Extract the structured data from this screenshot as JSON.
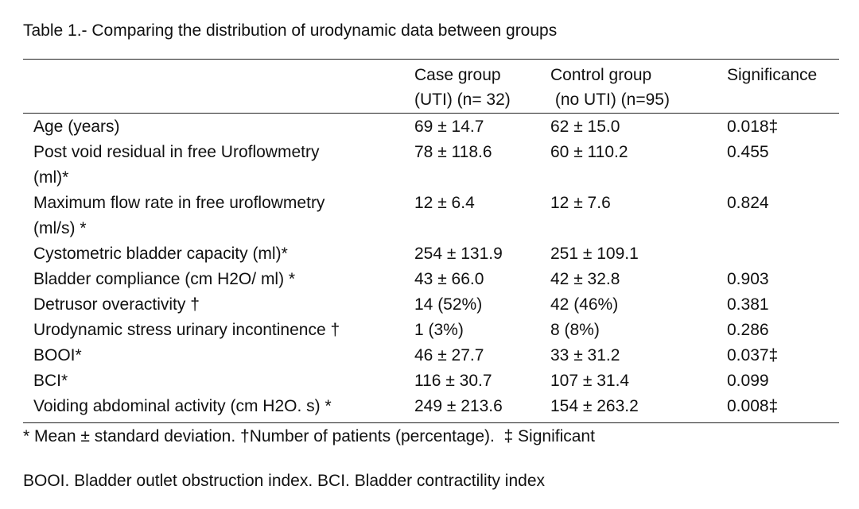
{
  "caption": "Table 1.- Comparing the distribution of urodynamic data between groups",
  "headers": {
    "case_line1": "Case group",
    "case_line2": "(UTI) (n= 32)",
    "control_line1": "Control group",
    "control_line2": " (no UTI) (n=95)",
    "significance": "Significance"
  },
  "rows": [
    {
      "label": [
        "Age (years)"
      ],
      "case": "69 ± 14.7",
      "control": "62 ± 15.0",
      "sig": "0.018‡"
    },
    {
      "label": [
        "Post void residual in free Uroflowmetry",
        "(ml)*"
      ],
      "case": "78 ± 118.6",
      "control": "60 ± 110.2",
      "sig": "0.455"
    },
    {
      "label": [
        "Maximum flow rate in free uroflowmetry",
        "(ml/s) *"
      ],
      "case": "12 ± 6.4",
      "control": "12 ± 7.6",
      "sig": "0.824"
    },
    {
      "label": [
        "Cystometric bladder capacity (ml)*"
      ],
      "case": "254 ± 131.9",
      "control": "251 ± 109.1",
      "sig": ""
    },
    {
      "label": [
        "Bladder compliance (cm H2O/ ml) *"
      ],
      "case": "43 ± 66.0",
      "control": "42 ± 32.8",
      "sig": "0.903"
    },
    {
      "label": [
        "Detrusor overactivity †"
      ],
      "case": "14 (52%)",
      "control": "42 (46%)",
      "sig": "0.381"
    },
    {
      "label": [
        "Urodynamic stress urinary incontinence †"
      ],
      "case": "1 (3%)",
      "control": "8 (8%)",
      "sig": "0.286"
    },
    {
      "label": [
        "BOOI*"
      ],
      "case": "46 ± 27.7",
      "control": "33 ± 31.2",
      "sig": "0.037‡"
    },
    {
      "label": [
        "BCI*"
      ],
      "case": "116 ± 30.7",
      "control": "107 ± 31.4",
      "sig": "0.099"
    },
    {
      "label": [
        "Voiding abdominal activity (cm H2O. s) *"
      ],
      "case": "249 ± 213.6",
      "control": "154 ± 263.2",
      "sig": "0.008‡"
    }
  ],
  "footnotes": {
    "line1": "* Mean ± standard deviation. †Number of patients (percentage).  ‡ Significant",
    "line2": "BOOI. Bladder outlet obstruction index. BCI. Bladder contractility index"
  }
}
